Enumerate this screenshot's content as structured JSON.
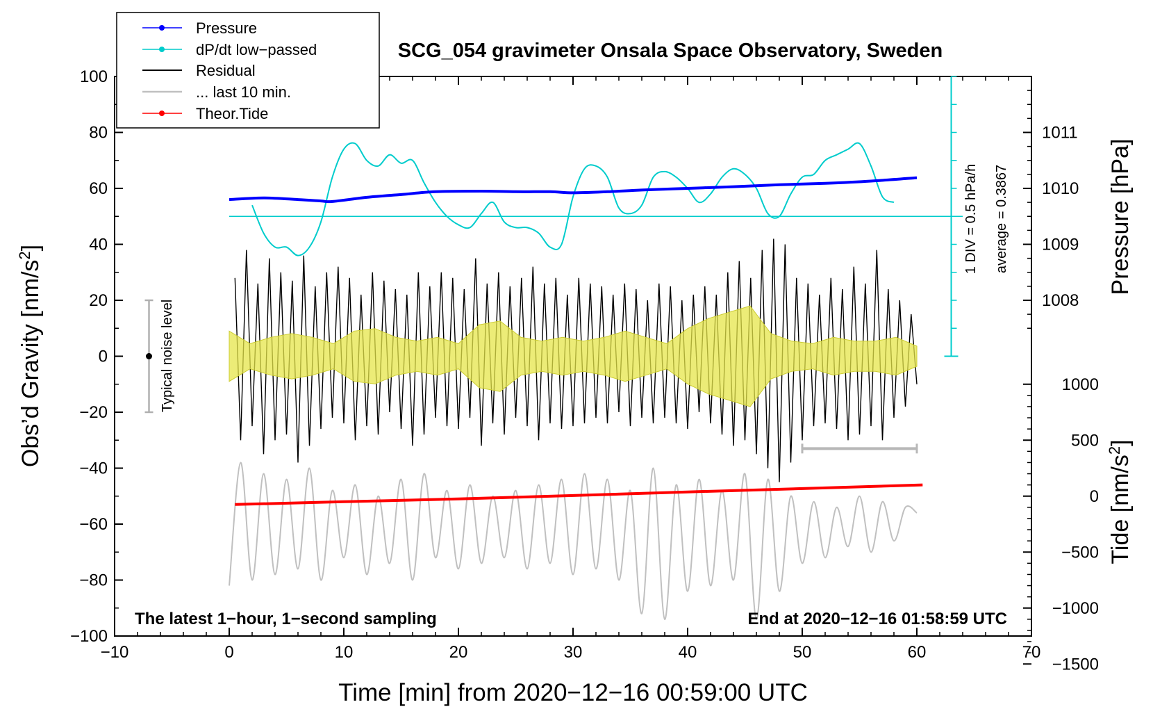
{
  "chart_data": {
    "type": "line",
    "title": "SCG_054 gravimeter Onsala Space Observatory, Sweden",
    "xlabel": "Time [min] from 2020−12−16 00:59:00 UTC",
    "ylabel": "Obs’d Gravity [nm/s²]",
    "ylabel_main": "Obs’d Gravity [nm/s",
    "ylabel_sup": "2",
    "ylabel_end": "]",
    "xlim": [
      -10,
      70
    ],
    "ylim": [
      -100,
      100
    ],
    "x_ticks": [
      "−10",
      "0",
      "10",
      "20",
      "30",
      "40",
      "50",
      "60",
      "70"
    ],
    "y_ticks": [
      "100",
      "80",
      "60",
      "40",
      "20",
      "0",
      "−20",
      "−40",
      "−60",
      "−80",
      "−100"
    ],
    "pressure_axis": {
      "label": "Pressure [hPa]",
      "ticks": [
        "1011",
        "1010",
        "1009",
        "1008"
      ],
      "tick_values": [
        1011,
        1010,
        1009,
        1008
      ],
      "gravity_at_1010": 60,
      "gravity_per_hpa": 20
    },
    "tide_axis": {
      "label_main": "Tide [nm/s",
      "label_sup": "2",
      "label_end": "]",
      "ticks": [
        "1000",
        "500",
        "0",
        "−500",
        "−1000",
        "−1500"
      ],
      "tick_values": [
        1000,
        500,
        0,
        -500,
        -1000,
        -1500
      ],
      "gravity_at_0": -50,
      "gravity_per_unit": 0.04
    },
    "legend": [
      "Pressure",
      "dP/dt low−passed",
      "Residual",
      "... last 10 min.",
      "Theor.Tide"
    ],
    "annotations": {
      "noise_label": "Typical noise level",
      "div_label": "1 DIV = 0.5 hPa/h",
      "average_label": "average = 0.3867",
      "bottom_left": "The latest 1−hour, 1−second sampling",
      "bottom_right": "End at 2020−12−16 01:58:59 UTC"
    },
    "noise_bar": {
      "x": -7,
      "center": 0,
      "half_range": 20
    },
    "last10_bar": {
      "x_start": 50,
      "x_end": 60,
      "y": -33
    },
    "dpdt_scale": {
      "x": 63,
      "ymin": 0,
      "ymax": 100,
      "baseline": 50
    },
    "series": [
      {
        "name": "Pressure",
        "color": "#0000ff",
        "x": [
          0,
          3,
          6,
          8,
          9,
          12,
          15,
          18,
          22,
          25,
          28,
          30,
          33,
          36,
          40,
          44,
          48,
          52,
          56,
          60
        ],
        "y": [
          56,
          56.6,
          56,
          55.5,
          55.3,
          56.8,
          57.8,
          58.8,
          59,
          58.8,
          58.8,
          58.4,
          58.8,
          59.4,
          60,
          60.6,
          61.3,
          61.8,
          62.6,
          63.8
        ]
      },
      {
        "name": "dP/dt low-passed",
        "color": "#00cccc",
        "x": [
          2,
          3,
          4,
          5,
          6,
          7,
          8,
          9,
          10,
          11,
          12,
          13,
          14,
          15,
          16,
          17,
          18,
          19,
          20,
          21,
          22,
          23,
          24,
          25,
          26,
          27,
          28,
          29,
          30,
          31,
          32,
          33,
          34,
          35,
          36,
          37,
          38,
          39,
          40,
          41,
          42,
          43,
          44,
          45,
          46,
          47,
          48,
          49,
          50,
          51,
          52,
          53,
          54,
          55,
          56,
          57,
          58
        ],
        "y": [
          54,
          44,
          39,
          39,
          36,
          39,
          48,
          64,
          74,
          76,
          70,
          68,
          72,
          69,
          70,
          62,
          55,
          50,
          47,
          46,
          51,
          55,
          48,
          46,
          46,
          44,
          39,
          40,
          57,
          67,
          68,
          64,
          53,
          51,
          54,
          64,
          66,
          64,
          60,
          55,
          58,
          64,
          67,
          65,
          60,
          51,
          50,
          58,
          64,
          65,
          70,
          72,
          74,
          76,
          68,
          57,
          55
        ]
      },
      {
        "name": "Residual",
        "color": "#000000",
        "x": [
          0.5,
          1,
          1.5,
          2,
          2.5,
          3,
          3.5,
          4,
          4.5,
          5,
          5.5,
          6,
          6.5,
          7,
          7.5,
          8,
          8.5,
          9,
          9.5,
          10,
          10.5,
          11,
          11.5,
          12,
          12.5,
          13,
          13.5,
          14,
          14.5,
          15,
          15.5,
          16,
          16.5,
          17,
          17.5,
          18,
          18.5,
          19,
          19.5,
          20,
          20.5,
          21,
          21.5,
          22,
          22.5,
          23,
          23.5,
          24,
          24.5,
          25,
          25.5,
          26,
          26.5,
          27,
          27.5,
          28,
          28.5,
          29,
          29.5,
          30,
          30.5,
          31,
          31.5,
          32,
          32.5,
          33,
          33.5,
          34,
          34.5,
          35,
          35.5,
          36,
          36.5,
          37,
          37.5,
          38,
          38.5,
          39,
          39.5,
          40,
          40.5,
          41,
          41.5,
          42,
          42.5,
          43,
          43.5,
          44,
          44.5,
          45,
          45.5,
          46,
          46.5,
          47,
          47.5,
          48,
          48.5,
          49,
          49.5,
          50,
          50.5,
          51,
          51.5,
          52,
          52.5,
          53,
          53.5,
          54,
          54.5,
          55,
          55.5,
          56,
          56.5,
          57,
          57.5,
          58,
          58.5,
          59,
          59.5,
          60
        ],
        "y": [
          28,
          -30,
          38,
          -25,
          26,
          -35,
          35,
          -30,
          30,
          -28,
          27,
          -38,
          36,
          -32,
          25,
          -26,
          30,
          -22,
          32,
          -24,
          28,
          -30,
          22,
          -25,
          30,
          -28,
          27,
          -20,
          24,
          -26,
          22,
          -32,
          30,
          -28,
          25,
          -22,
          30,
          -25,
          28,
          -26,
          24,
          -22,
          35,
          -32,
          26,
          -24,
          30,
          -28,
          25,
          -22,
          28,
          -25,
          32,
          -30,
          26,
          -24,
          28,
          -26,
          22,
          -25,
          28,
          -24,
          26,
          -22,
          25,
          -24,
          22,
          -20,
          26,
          -25,
          24,
          -22,
          20,
          -24,
          26,
          -22,
          25,
          -24,
          20,
          -26,
          22,
          -20,
          25,
          -24,
          22,
          -28,
          30,
          -32,
          34,
          -30,
          28,
          -35,
          38,
          -40,
          42,
          -45,
          40,
          -38,
          28,
          -30,
          26,
          -25,
          22,
          -24,
          28,
          -26,
          24,
          -30,
          32,
          -28,
          26,
          -25,
          38,
          -30,
          24,
          -22,
          20,
          -18,
          15,
          -10
        ],
        "envelope": [
          20,
          10,
          15,
          18,
          15,
          10,
          20,
          22,
          15,
          12,
          15,
          10,
          25,
          28,
          15,
          12,
          15,
          12,
          15,
          20,
          15,
          10,
          22,
          30,
          35,
          40,
          18,
          12,
          10,
          15,
          12,
          12,
          15,
          8
        ]
      },
      {
        "name": "... last 10 min.",
        "color": "#c0c0c0",
        "x": [
          0,
          1,
          2,
          3,
          4,
          5,
          6,
          7,
          8,
          9,
          10,
          11,
          12,
          13,
          14,
          15,
          16,
          17,
          18,
          19,
          20,
          21,
          22,
          23,
          24,
          25,
          26,
          27,
          28,
          29,
          30,
          31,
          32,
          33,
          34,
          35,
          36,
          37,
          38,
          39,
          40,
          41,
          42,
          43,
          44,
          45,
          46,
          47,
          48,
          49,
          50,
          51,
          52,
          53,
          54,
          55,
          56,
          57,
          58,
          59,
          60
        ],
        "y": [
          -82,
          -38,
          -80,
          -42,
          -78,
          -44,
          -76,
          -40,
          -80,
          -48,
          -72,
          -46,
          -78,
          -50,
          -74,
          -44,
          -80,
          -42,
          -72,
          -48,
          -76,
          -46,
          -74,
          -50,
          -72,
          -48,
          -76,
          -46,
          -74,
          -44,
          -78,
          -42,
          -76,
          -44,
          -80,
          -48,
          -92,
          -40,
          -94,
          -46,
          -84,
          -44,
          -82,
          -48,
          -80,
          -42,
          -94,
          -44,
          -84,
          -50,
          -74,
          -52,
          -72,
          -54,
          -68,
          -50,
          -70,
          -52,
          -66,
          -54,
          -56
        ]
      },
      {
        "name": "Theor.Tide",
        "color": "#ff0000",
        "x": [
          0.5,
          10,
          20,
          30,
          40,
          50,
          60.5
        ],
        "y": [
          -53,
          -52,
          -51,
          -49.8,
          -48.5,
          -47.3,
          -46
        ]
      }
    ]
  }
}
